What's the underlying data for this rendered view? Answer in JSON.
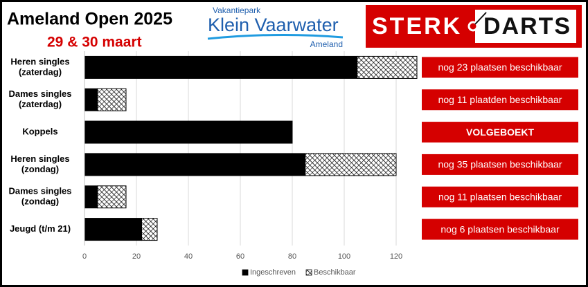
{
  "header": {
    "title": "Ameland Open 2025",
    "date": "29 & 30 maart",
    "logo_park": {
      "top": "Vakantiepark",
      "name": "Klein Vaarwater",
      "bottom": "Ameland"
    },
    "logo_darts": {
      "left": "STERK",
      "right": "DARTS"
    }
  },
  "chart_data": {
    "type": "stacked-barh",
    "categories": [
      [
        "Heren singles",
        "(zaterdag)"
      ],
      [
        "Dames singles",
        "(zaterdag)"
      ],
      [
        "Koppels"
      ],
      [
        "Heren singles",
        "(zondag)"
      ],
      [
        "Dames singles",
        "(zondag)"
      ],
      [
        "Jeugd (t/m 21)"
      ]
    ],
    "series": [
      {
        "name": "Ingeschreven",
        "color": "#000000",
        "values": [
          105,
          5,
          80,
          85,
          5,
          22
        ]
      },
      {
        "name": "Beschikbaar",
        "color": "#ffffff",
        "hatch": true,
        "values": [
          23,
          11,
          0,
          35,
          11,
          6
        ]
      }
    ],
    "xlim": [
      0,
      130
    ],
    "xticks": [
      0,
      20,
      40,
      60,
      80,
      100,
      120
    ],
    "grid": true,
    "legend": "bottom",
    "annotations": [
      "nog 23 plaatsen beschikbaar",
      "nog 11 plaatden beschikbaar",
      "VOLGEBOEKT",
      "nog 35 plaatsen beschikbaar",
      "nog 11 plaatsen beschikbaar",
      "nog 6 plaatsen beschikbaar"
    ],
    "annotation_color": "#d50000"
  }
}
